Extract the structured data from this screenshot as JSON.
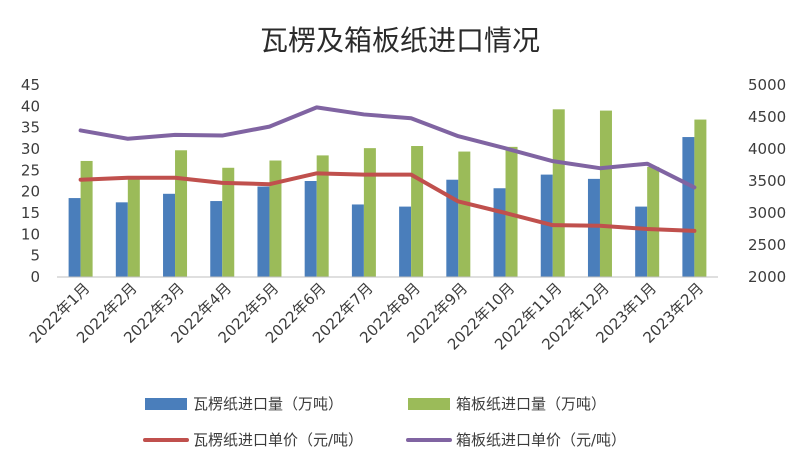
{
  "chart_data": {
    "type": "bar",
    "title": "瓦楞及箱板纸进口情况",
    "categories": [
      "2022年1月",
      "2022年2月",
      "2022年3月",
      "2022年4月",
      "2022年5月",
      "2022年6月",
      "2022年7月",
      "2022年8月",
      "2022年9月",
      "2022年10月",
      "2022年11月",
      "2022年12月",
      "2023年1月",
      "2023年2月"
    ],
    "y_left": {
      "ylim": [
        0,
        45
      ],
      "ticks": [
        0,
        5,
        10,
        15,
        20,
        25,
        30,
        35,
        40,
        45
      ]
    },
    "y_right": {
      "ylim": [
        2000,
        5000
      ],
      "ticks": [
        2000,
        2500,
        3000,
        3500,
        4000,
        4500,
        5000
      ]
    },
    "series": [
      {
        "name": "瓦楞纸进口量（万吨）",
        "kind": "bar",
        "axis": "left",
        "color": "#4a7ebb",
        "values": [
          18.5,
          17.5,
          19.5,
          17.8,
          21.2,
          22.5,
          17.0,
          16.5,
          22.8,
          20.8,
          24.0,
          23.0,
          16.5,
          32.8
        ]
      },
      {
        "name": "箱板纸进口量（万吨）",
        "kind": "bar",
        "axis": "left",
        "color": "#9bbb59",
        "values": [
          27.2,
          23.2,
          29.7,
          25.6,
          27.3,
          28.5,
          30.2,
          30.7,
          29.4,
          30.5,
          39.3,
          39.0,
          25.8,
          36.9
        ]
      },
      {
        "name": "瓦楞纸进口单价（元/吨）",
        "kind": "line",
        "axis": "right",
        "color": "#c0504d",
        "values": [
          3520,
          3550,
          3550,
          3470,
          3450,
          3620,
          3600,
          3600,
          3180,
          3000,
          2810,
          2800,
          2750,
          2720
        ]
      },
      {
        "name": "箱板纸进口单价（元/吨）",
        "kind": "line",
        "axis": "right",
        "color": "#8064a2",
        "values": [
          4290,
          4160,
          4220,
          4210,
          4350,
          4650,
          4540,
          4480,
          4200,
          4010,
          3810,
          3700,
          3770,
          3400
        ]
      }
    ],
    "legend_position": "bottom",
    "grid": false
  }
}
